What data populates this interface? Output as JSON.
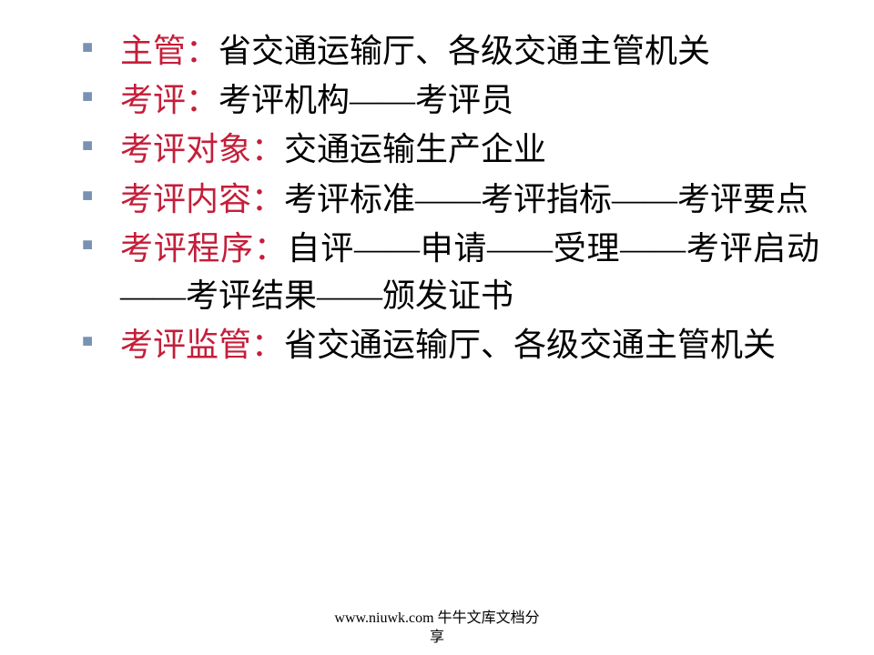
{
  "items": [
    {
      "label": "主管：",
      "text": "省交通运输厅、各级交通主管机关"
    },
    {
      "label": "考评：",
      "text": "考评机构——考评员"
    },
    {
      "label": "考评对象：",
      "text": "交通运输生产企业"
    },
    {
      "label": "考评内容：",
      "text": "考评标准——考评指标——考评要点"
    },
    {
      "label": "考评程序：",
      "text": "自评——申请——受理——考评启动——考评结果——颁发证书"
    },
    {
      "label": "考评监管：",
      "text": "省交通运输厅、各级交通主管机关"
    }
  ],
  "footer": {
    "line1": "www.niuwk.com 牛牛文库文档分",
    "line2": "享"
  },
  "colors": {
    "label": "#c41e3a",
    "text": "#000000",
    "bullet": "#7991b3",
    "background": "#ffffff"
  }
}
